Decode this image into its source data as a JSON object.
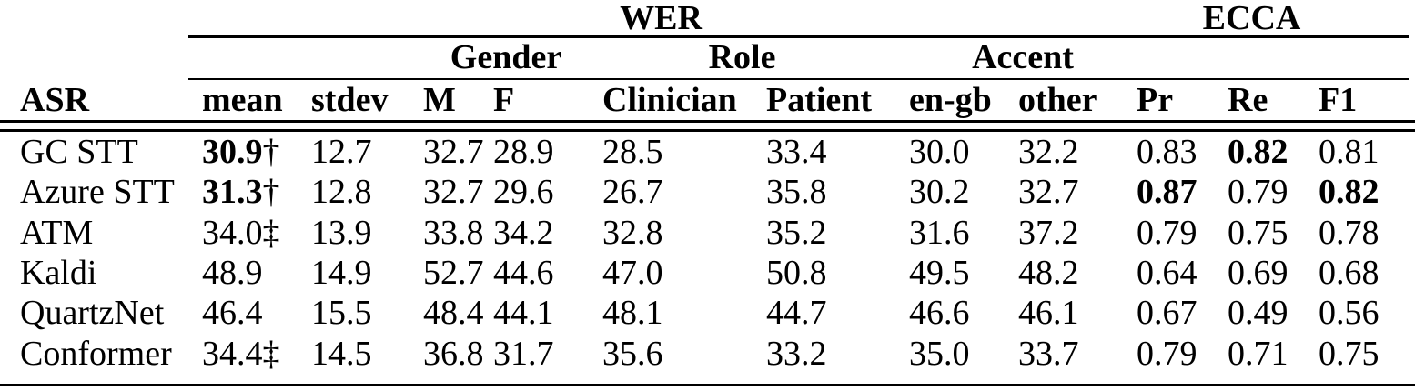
{
  "header": {
    "wer": "WER",
    "ecca": "ECCA",
    "gender": "Gender",
    "role": "Role",
    "accent": "Accent",
    "columns": [
      "ASR",
      "mean",
      "stdev",
      "M",
      "F",
      "Clinician",
      "Patient",
      "en-gb",
      "other",
      "Pr",
      "Re",
      "F1"
    ]
  },
  "rows": [
    {
      "asr": "GC STT",
      "mean": "30.9",
      "marker": "†",
      "stdev": "12.7",
      "m": "32.7",
      "f": "28.9",
      "clinician": "28.5",
      "patient": "33.4",
      "en_gb": "30.0",
      "other": "32.2",
      "pr": "0.83",
      "re": "0.82",
      "f1": "0.81"
    },
    {
      "asr": "Azure STT",
      "mean": "31.3",
      "marker": "†",
      "stdev": "12.8",
      "m": "32.7",
      "f": "29.6",
      "clinician": "26.7",
      "patient": "35.8",
      "en_gb": "30.2",
      "other": "32.7",
      "pr": "0.87",
      "re": "0.79",
      "f1": "0.82"
    },
    {
      "asr": "ATM",
      "mean": "34.0",
      "marker": "‡",
      "stdev": "13.9",
      "m": "33.8",
      "f": "34.2",
      "clinician": "32.8",
      "patient": "35.2",
      "en_gb": "31.6",
      "other": "37.2",
      "pr": "0.79",
      "re": "0.75",
      "f1": "0.78"
    },
    {
      "asr": "Kaldi",
      "mean": "48.9",
      "marker": "",
      "stdev": "14.9",
      "m": "52.7",
      "f": "44.6",
      "clinician": "47.0",
      "patient": "50.8",
      "en_gb": "49.5",
      "other": "48.2",
      "pr": "0.64",
      "re": "0.69",
      "f1": "0.68"
    },
    {
      "asr": "QuartzNet",
      "mean": "46.4",
      "marker": "",
      "stdev": "15.5",
      "m": "48.4",
      "f": "44.1",
      "clinician": "48.1",
      "patient": "44.7",
      "en_gb": "46.6",
      "other": "46.1",
      "pr": "0.67",
      "re": "0.49",
      "f1": "0.56"
    },
    {
      "asr": "Conformer",
      "mean": "34.4",
      "marker": "‡",
      "stdev": "14.5",
      "m": "36.8",
      "f": "31.7",
      "clinician": "35.6",
      "patient": "33.2",
      "en_gb": "35.0",
      "other": "33.7",
      "pr": "0.79",
      "re": "0.71",
      "f1": "0.75"
    }
  ]
}
